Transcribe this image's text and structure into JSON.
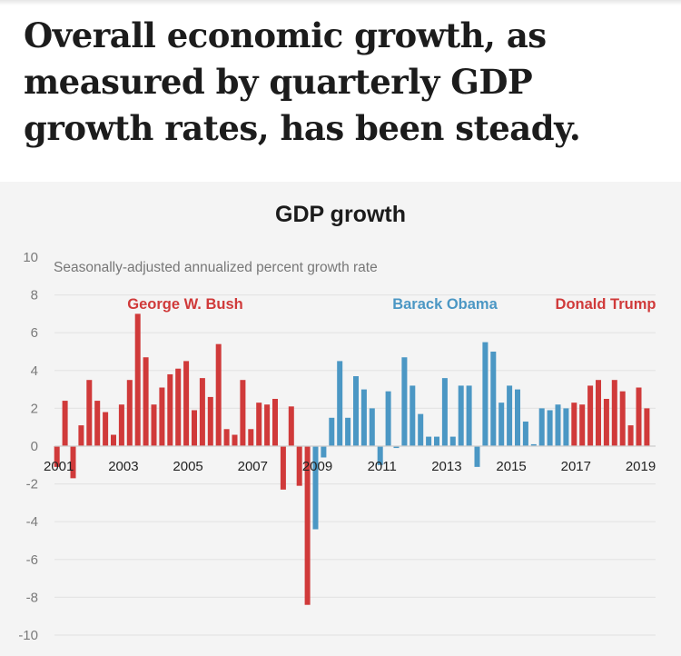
{
  "headline": "Overall economic growth, as measured by quarterly GDP growth rates, has been steady.",
  "chart_data": {
    "type": "bar",
    "title": "GDP growth",
    "subtitle": "Seasonally-adjusted annualized percent growth rate",
    "xlabel": "",
    "ylabel": "",
    "ylim": [
      -10,
      10
    ],
    "yticks": [
      10,
      8,
      6,
      4,
      2,
      0,
      -2,
      -4,
      -6,
      -8,
      -10
    ],
    "xtick_labels": [
      "2001",
      "2003",
      "2005",
      "2007",
      "2009",
      "2011",
      "2013",
      "2015",
      "2017",
      "2019"
    ],
    "x_start": "2001 Q1",
    "frequency": "quarterly",
    "grid": true,
    "colors": {
      "republican": "#d03a3a",
      "democrat": "#4b97c4"
    },
    "series": [
      {
        "name": "George W. Bush",
        "color": "#d03a3a",
        "start": "2001 Q1",
        "values": [
          -1.1,
          2.4,
          -1.7,
          1.1,
          3.5,
          2.4,
          1.8,
          0.6,
          2.2,
          3.5,
          7.0,
          4.7,
          2.2,
          3.1,
          3.8,
          4.1,
          4.5,
          1.9,
          3.6,
          2.6,
          5.4,
          0.9,
          0.6,
          3.5,
          0.9,
          2.3,
          2.2,
          2.5,
          -2.3,
          2.1,
          -2.1,
          -8.4
        ]
      },
      {
        "name": "Barack Obama",
        "color": "#4b97c4",
        "start": "2009 Q1",
        "values": [
          -4.4,
          -0.6,
          1.5,
          4.5,
          1.5,
          3.7,
          3.0,
          2.0,
          -1.0,
          2.9,
          -0.1,
          4.7,
          3.2,
          1.7,
          0.5,
          0.5,
          3.6,
          0.5,
          3.2,
          3.2,
          -1.1,
          5.5,
          5.0,
          2.3,
          3.2,
          3.0,
          1.3,
          0.1,
          2.0,
          1.9,
          2.2,
          2.0
        ]
      },
      {
        "name": "Donald Trump",
        "color": "#d03a3a",
        "start": "2017 Q1",
        "values": [
          2.3,
          2.2,
          3.2,
          3.5,
          2.5,
          3.5,
          2.9,
          1.1,
          3.1,
          2.0
        ]
      }
    ]
  }
}
